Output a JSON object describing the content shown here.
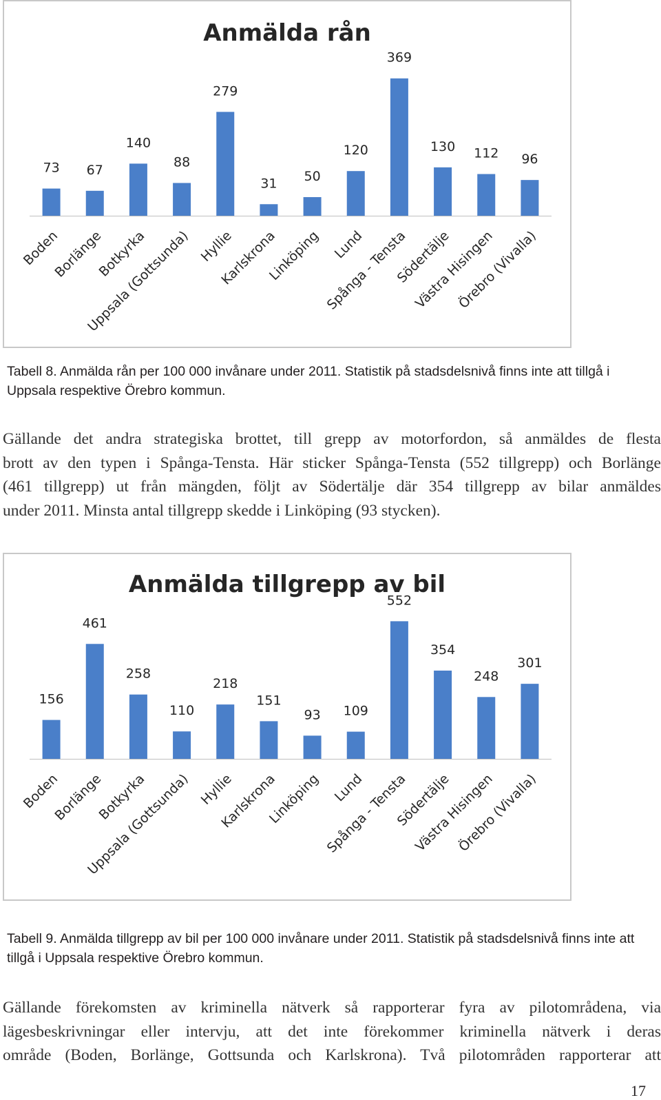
{
  "charts": [
    {
      "type": "bar",
      "title": "Anmälda rån",
      "categories": [
        "Boden",
        "Borlänge",
        "Botkyrka",
        "Uppsala (Gottsunda)",
        "Hyllie",
        "Karlskrona",
        "Linköping",
        "Lund",
        "Spånga - Tensta",
        "Södertälje",
        "Västra Hisingen",
        "Örebro (Vivalla)"
      ],
      "values": [
        73,
        67,
        140,
        88,
        279,
        31,
        50,
        120,
        369,
        130,
        112,
        96
      ],
      "bar_color": "#4a7fc9",
      "ylim": [
        0,
        400
      ],
      "legend": "none",
      "grid": false
    },
    {
      "type": "bar",
      "title": "Anmälda tillgrepp av bil",
      "categories": [
        "Boden",
        "Borlänge",
        "Botkyrka",
        "Uppsala (Gottsunda)",
        "Hyllie",
        "Karlskrona",
        "Linköping",
        "Lund",
        "Spånga - Tensta",
        "Södertälje",
        "Västra Hisingen",
        "Örebro (Vivalla)"
      ],
      "values": [
        156,
        461,
        258,
        110,
        218,
        151,
        93,
        109,
        552,
        354,
        248,
        301
      ],
      "bar_color": "#4a7fc9",
      "ylim": [
        0,
        600
      ],
      "legend": "none",
      "grid": false
    }
  ],
  "chart_data": [
    {
      "type": "bar",
      "title": "Anmälda rån",
      "categories": [
        "Boden",
        "Borlänge",
        "Botkyrka",
        "Uppsala (Gottsunda)",
        "Hyllie",
        "Karlskrona",
        "Linköping",
        "Lund",
        "Spånga - Tensta",
        "Södertälje",
        "Västra Hisingen",
        "Örebro (Vivalla)"
      ],
      "values": [
        73,
        67,
        140,
        88,
        279,
        31,
        50,
        120,
        369,
        130,
        112,
        96
      ]
    },
    {
      "type": "bar",
      "title": "Anmälda tillgrepp av bil",
      "categories": [
        "Boden",
        "Borlänge",
        "Botkyrka",
        "Uppsala (Gottsunda)",
        "Hyllie",
        "Karlskrona",
        "Linköping",
        "Lund",
        "Spånga - Tensta",
        "Södertälje",
        "Västra Hisingen",
        "Örebro (Vivalla)"
      ],
      "values": [
        156,
        461,
        258,
        110,
        218,
        151,
        93,
        109,
        552,
        354,
        248,
        301
      ]
    }
  ],
  "captions": {
    "table8": "Tabell 8. Anmälda rån per 100 000 invånare under 2011. Statistik på stadsdelsnivå finns inte att tillgå i Uppsala respektive Örebro kommun.",
    "table9": "Tabell 9. Anmälda tillgrepp av bil per 100 000 invånare under 2011. Statistik på stadsdelsnivå finns inte att tillgå i Uppsala respektive Örebro kommun."
  },
  "paragraphs": {
    "para1_lines": [
      "Gällande det andra strategiska brottet, till grepp av motorfordon, så anmäldes de flesta",
      "brott av den typen i Spånga-Tensta. Här sticker Spånga-Tensta (552 tillgrepp) och Borlänge",
      "(461 tillgrepp) ut från mängden, följt av Södertälje där 354 tillgrepp av bilar anmäldes",
      "under 2011. Minsta antal tillgrepp skedde i Linköping (93 stycken)."
    ],
    "para2_lines": [
      "Gällande förekomsten av kriminella nätverk så rapporterar fyra av pilotområdena, via",
      "lägesbeskrivningar eller intervju, att det inte förekommer kriminella nätverk i deras",
      "område (Boden, Borlänge, Gottsunda och Karlskrona). Två pilotområden rapporterar att"
    ]
  },
  "page_number": "17"
}
